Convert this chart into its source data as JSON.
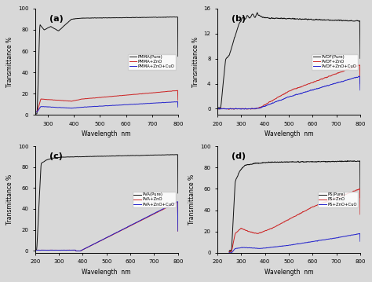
{
  "subplot_labels": [
    "(a)",
    "(b)",
    "(c)",
    "(d)"
  ],
  "xlabel": "Wavelength  nm",
  "ylabel": "Transmittance %",
  "xlim_a": [
    250,
    800
  ],
  "xlim_bcd": [
    200,
    800
  ],
  "ylim_a": [
    0,
    100
  ],
  "ylim_b": [
    -1,
    16
  ],
  "ylim_c": [
    -2,
    100
  ],
  "ylim_d": [
    0,
    100
  ],
  "yticks_b": [
    0,
    4,
    8,
    12,
    16
  ],
  "legends": {
    "a": [
      "PMMA(Pure)",
      "PMMA+ZnO",
      "PMMA+ZnO+CuO"
    ],
    "b": [
      "PVDF(Pure)",
      "PVDF+ZnO",
      "PVDF+ZnO+CuO"
    ],
    "c": [
      "PVA(Pure)",
      "PVA+ZnO",
      "PVA+ZnO+CuO"
    ],
    "d": [
      "PS(Pure)",
      "PS+ZnO",
      "PS+ZnO+CuO"
    ]
  },
  "colors": [
    "#111111",
    "#cc2222",
    "#2222cc"
  ],
  "bg_color": "#d8d8d8"
}
